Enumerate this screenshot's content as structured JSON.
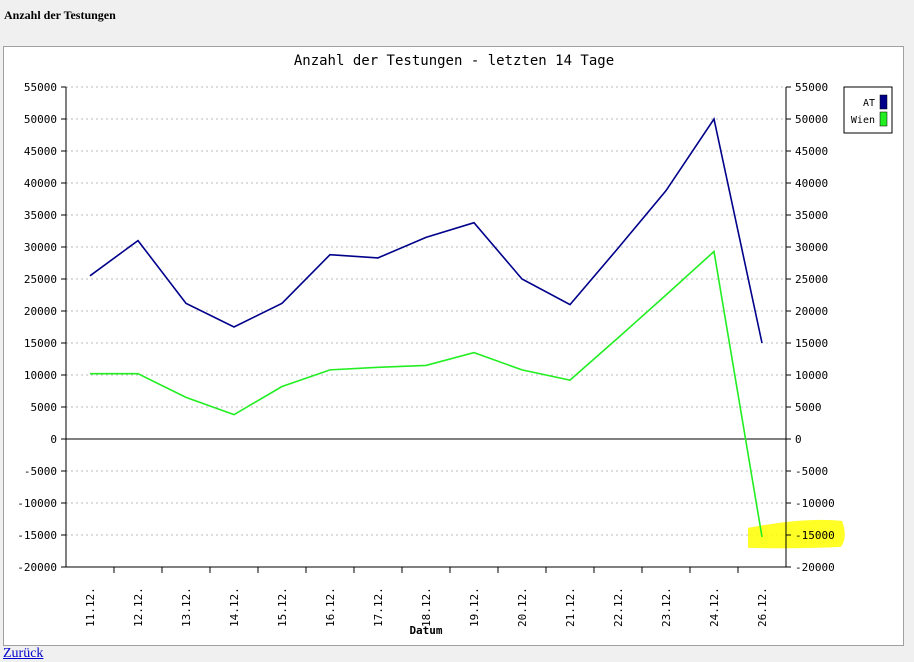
{
  "page": {
    "heading": "Anzahl der Testungen",
    "back_link": "Zurück"
  },
  "chart_data": {
    "type": "line",
    "title": "Anzahl der Testungen - letzten 14 Tage",
    "xlabel": "Datum",
    "ylabel": "",
    "categories": [
      "11.12.",
      "12.12.",
      "13.12.",
      "14.12.",
      "15.12.",
      "16.12.",
      "17.12.",
      "18.12.",
      "19.12.",
      "20.12.",
      "21.12.",
      "22.12.",
      "23.12.",
      "24.12.",
      "26.12."
    ],
    "series": [
      {
        "name": "AT",
        "color": "#00008b",
        "values": [
          25500,
          31000,
          21200,
          17500,
          21200,
          28800,
          28300,
          31500,
          33800,
          25000,
          21000,
          29800,
          38800,
          50000,
          15000
        ]
      },
      {
        "name": "Wien",
        "color": "#22ee22",
        "values": [
          10200,
          10200,
          6500,
          3800,
          8200,
          10800,
          11200,
          11500,
          13500,
          10800,
          9200,
          15800,
          22500,
          29300,
          -15300
        ]
      }
    ],
    "ylim": [
      -20000,
      55000
    ],
    "yticks": [
      55000,
      50000,
      45000,
      40000,
      35000,
      30000,
      25000,
      20000,
      15000,
      10000,
      5000,
      0,
      -5000,
      -10000,
      -15000,
      -20000
    ],
    "grid": true,
    "legend_position": "top-right",
    "secondary_y_axis": true,
    "highlight_color": "#ffff00"
  }
}
